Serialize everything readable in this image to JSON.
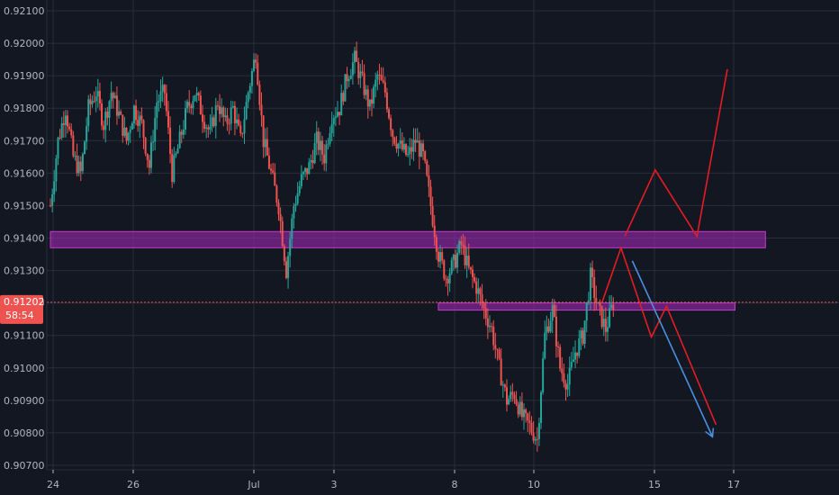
{
  "colors": {
    "background": "#131722",
    "grid": "#2a2e39",
    "axis_text": "#b2b5be",
    "candle_up": "#26a69a",
    "candle_down": "#ef5350",
    "zone_fill": "#9c27b0",
    "zone_border": "#c23cc8",
    "projection_red": "#e51c23",
    "projection_blue": "#4a90e2",
    "price_badge": "#ef5350",
    "current_price_line": "#ef5350"
  },
  "price_badge": {
    "value": "0.91202",
    "countdown": "58:54"
  },
  "chart_data": {
    "type": "candlestick",
    "title": "",
    "xlabel": "",
    "ylabel": "",
    "ylim": [
      0.9068,
      0.9212
    ],
    "grid": true,
    "y_ticks": [
      "0.92100",
      "0.92000",
      "0.91900",
      "0.91800",
      "0.91700",
      "0.91600",
      "0.91500",
      "0.91400",
      "0.91300",
      "0.91200",
      "0.91100",
      "0.91000",
      "0.90900",
      "0.90800",
      "0.90700"
    ],
    "x_ticks": [
      "24",
      "26",
      "Jul",
      "3",
      "8",
      "10",
      "15",
      "17"
    ],
    "current_price": 0.91202,
    "price_path": [
      [
        0,
        0.915
      ],
      [
        2,
        0.917
      ],
      [
        4,
        0.918
      ],
      [
        6,
        0.9165
      ],
      [
        8,
        0.916
      ],
      [
        10,
        0.918
      ],
      [
        12,
        0.9185
      ],
      [
        14,
        0.9175
      ],
      [
        16,
        0.9185
      ],
      [
        18,
        0.9178
      ],
      [
        20,
        0.917
      ],
      [
        22,
        0.918
      ],
      [
        24,
        0.9175
      ],
      [
        26,
        0.9162
      ],
      [
        28,
        0.9182
      ],
      [
        30,
        0.9185
      ],
      [
        32,
        0.916
      ],
      [
        34,
        0.917
      ],
      [
        36,
        0.918
      ],
      [
        38,
        0.9185
      ],
      [
        40,
        0.9178
      ],
      [
        42,
        0.9172
      ],
      [
        44,
        0.9182
      ],
      [
        46,
        0.9175
      ],
      [
        48,
        0.918
      ],
      [
        50,
        0.917
      ],
      [
        52,
        0.9185
      ],
      [
        54,
        0.9197
      ],
      [
        56,
        0.917
      ],
      [
        58,
        0.916
      ],
      [
        60,
        0.915
      ],
      [
        62,
        0.913
      ],
      [
        64,
        0.915
      ],
      [
        66,
        0.9158
      ],
      [
        68,
        0.9162
      ],
      [
        70,
        0.917
      ],
      [
        72,
        0.9165
      ],
      [
        74,
        0.9178
      ],
      [
        76,
        0.918
      ],
      [
        78,
        0.919
      ],
      [
        80,
        0.9195
      ],
      [
        82,
        0.9188
      ],
      [
        84,
        0.918
      ],
      [
        86,
        0.919
      ],
      [
        88,
        0.9185
      ],
      [
        90,
        0.9172
      ],
      [
        92,
        0.9168
      ],
      [
        94,
        0.9165
      ],
      [
        96,
        0.917
      ],
      [
        98,
        0.9165
      ],
      [
        100,
        0.915
      ],
      [
        102,
        0.9135
      ],
      [
        104,
        0.9128
      ],
      [
        106,
        0.9132
      ],
      [
        108,
        0.9138
      ],
      [
        110,
        0.913
      ],
      [
        112,
        0.9125
      ],
      [
        114,
        0.9118
      ],
      [
        116,
        0.9112
      ],
      [
        118,
        0.91
      ],
      [
        120,
        0.909
      ],
      [
        122,
        0.9092
      ],
      [
        124,
        0.9085
      ],
      [
        126,
        0.9082
      ],
      [
        128,
        0.9078
      ],
      [
        130,
        0.911
      ],
      [
        132,
        0.9118
      ],
      [
        134,
        0.91
      ],
      [
        136,
        0.9095
      ],
      [
        138,
        0.9105
      ],
      [
        140,
        0.911
      ],
      [
        142,
        0.9128
      ],
      [
        144,
        0.9118
      ],
      [
        146,
        0.9112
      ],
      [
        148,
        0.912
      ]
    ],
    "zones": [
      {
        "label": "resistance-zone",
        "x_start": 0,
        "x_end": 188,
        "y_low": 0.9137,
        "y_high": 0.9142
      },
      {
        "label": "support-zone",
        "x_start": 102,
        "x_end": 180,
        "y_low": 0.91178,
        "y_high": 0.912
      }
    ],
    "projections": [
      {
        "name": "bullish-path",
        "color": "red",
        "points": [
          [
            151,
            0.91405
          ],
          [
            159,
            0.9161
          ],
          [
            170,
            0.91405
          ],
          [
            178,
            0.9192
          ]
        ]
      },
      {
        "name": "bearish-path",
        "color": "red",
        "points": [
          [
            145,
            0.912
          ],
          [
            150,
            0.9137
          ],
          [
            158,
            0.91095
          ],
          [
            162,
            0.9119
          ],
          [
            175,
            0.90825
          ]
        ]
      },
      {
        "name": "bearish-arrow",
        "color": "blue",
        "arrow": true,
        "points": [
          [
            153,
            0.9133
          ],
          [
            174,
            0.9079
          ]
        ]
      }
    ]
  }
}
